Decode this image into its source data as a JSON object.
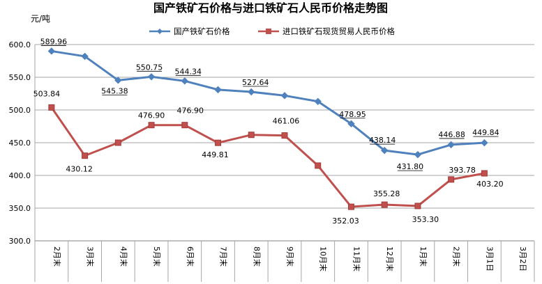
{
  "chart_data": {
    "type": "line",
    "title": "国产铁矿石价格与进口铁矿石人民币价格走势图",
    "ylabel": "元/吨",
    "xlabel": "",
    "ylim": [
      300,
      600
    ],
    "yticks": [
      "300.0",
      "350.0",
      "400.0",
      "450.0",
      "500.0",
      "550.0",
      "600.0"
    ],
    "categories": [
      "2月末",
      "3月末",
      "4月末",
      "5月末",
      "6月末",
      "7月末",
      "8月末",
      "9月末",
      "10月末",
      "11月末",
      "12月末",
      "1月末",
      "2月末",
      "3月1日",
      "3月2日"
    ],
    "grid": "horizontal",
    "legend": "top",
    "series": [
      {
        "name": "国产铁矿石价格",
        "color": "#4f81bd",
        "marker": "diamond",
        "values": [
          589.96,
          582,
          545.38,
          550.75,
          544.34,
          531,
          527.64,
          522,
          513,
          478.95,
          438.14,
          431.8,
          446.88,
          449.84,
          null
        ],
        "labels": [
          "589.96",
          "",
          "545.38",
          "550.75",
          "544.34",
          "",
          "527.64",
          "",
          "",
          "478.95",
          "438.14",
          "431.80",
          "446.88",
          "449.84",
          ""
        ]
      },
      {
        "name": "进口铁矿石现货贸易人民币价格",
        "color": "#c0504d",
        "marker": "square",
        "values": [
          503.84,
          430.12,
          450,
          476.9,
          476.9,
          449.81,
          462,
          461.06,
          415,
          352.03,
          355.28,
          353.3,
          393.78,
          403.2,
          null
        ],
        "labels": [
          "503.84",
          "430.12",
          "",
          "476.90",
          "476.90",
          "449.81",
          "",
          "461.06",
          "",
          "352.03",
          "355.28",
          "353.30",
          "393.78",
          "403.20",
          ""
        ]
      }
    ]
  }
}
